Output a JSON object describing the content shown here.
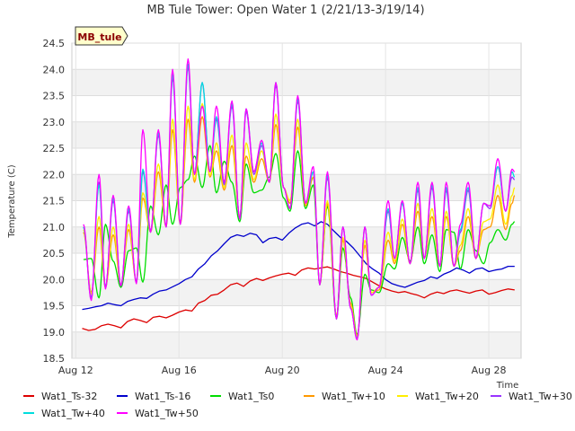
{
  "chart_data": {
    "type": "line",
    "title": "MB Tule Tower: Open Water 1 (2/21/13-3/19/14)",
    "xlabel": "Time",
    "ylabel": "Temperature (C)",
    "badge": "MB_tule",
    "xlim": [
      11.85,
      29.25
    ],
    "ylim": [
      18.5,
      24.5
    ],
    "x_ticks": [
      12,
      16,
      20,
      24,
      28
    ],
    "x_tick_labels": [
      "Aug 12",
      "Aug 16",
      "Aug 20",
      "Aug 24",
      "Aug 28"
    ],
    "y_ticks": [
      18.5,
      19.0,
      19.5,
      20.0,
      20.5,
      21.0,
      21.5,
      22.0,
      22.5,
      23.0,
      23.5,
      24.0,
      24.5
    ],
    "y_tick_labels": [
      "18.5",
      "19.0",
      "19.5",
      "20.0",
      "20.5",
      "21.0",
      "21.5",
      "22.0",
      "22.5",
      "23.0",
      "23.5",
      "24.0",
      "24.5"
    ],
    "banded_background": true,
    "legend_position": "bottom",
    "series": [
      {
        "name": "Wat1_Ts-32",
        "color": "#dd0000",
        "x": [
          12.25,
          12.5,
          12.75,
          13.0,
          13.25,
          13.5,
          13.75,
          14.0,
          14.25,
          14.5,
          14.75,
          15.0,
          15.25,
          15.5,
          15.75,
          16.0,
          16.25,
          16.5,
          16.75,
          17.0,
          17.25,
          17.5,
          17.75,
          18.0,
          18.25,
          18.5,
          18.75,
          19.0,
          19.25,
          19.5,
          19.75,
          20.0,
          20.25,
          20.5,
          20.75,
          21.0,
          21.25,
          21.5,
          21.75,
          22.0,
          22.25,
          22.5,
          22.75,
          23.0,
          23.25,
          23.5,
          23.75,
          24.0,
          24.25,
          24.5,
          24.75,
          25.0,
          25.25,
          25.5,
          25.75,
          26.0,
          26.25,
          26.5,
          26.75,
          27.0,
          27.25,
          27.5,
          27.75,
          28.0,
          28.25,
          28.5,
          28.75,
          29.0
        ],
        "y": [
          19.07,
          19.03,
          19.05,
          19.12,
          19.15,
          19.12,
          19.08,
          19.2,
          19.25,
          19.22,
          19.18,
          19.28,
          19.3,
          19.27,
          19.32,
          19.38,
          19.42,
          19.4,
          19.55,
          19.6,
          19.7,
          19.72,
          19.8,
          19.9,
          19.93,
          19.87,
          19.97,
          20.02,
          19.98,
          20.03,
          20.07,
          20.1,
          20.12,
          20.08,
          20.18,
          20.22,
          20.2,
          20.22,
          20.24,
          20.2,
          20.15,
          20.12,
          20.08,
          20.05,
          20.02,
          19.95,
          19.88,
          19.82,
          19.78,
          19.75,
          19.77,
          19.73,
          19.7,
          19.65,
          19.72,
          19.76,
          19.73,
          19.78,
          19.8,
          19.77,
          19.74,
          19.78,
          19.8,
          19.72,
          19.75,
          19.79,
          19.82,
          19.8
        ]
      },
      {
        "name": "Wat1_Ts-16",
        "color": "#0000cc",
        "x": [
          12.25,
          12.5,
          12.75,
          13.0,
          13.25,
          13.5,
          13.75,
          14.0,
          14.25,
          14.5,
          14.75,
          15.0,
          15.25,
          15.5,
          15.75,
          16.0,
          16.25,
          16.5,
          16.75,
          17.0,
          17.25,
          17.5,
          17.75,
          18.0,
          18.25,
          18.5,
          18.75,
          19.0,
          19.25,
          19.5,
          19.75,
          20.0,
          20.25,
          20.5,
          20.75,
          21.0,
          21.25,
          21.5,
          21.75,
          22.0,
          22.25,
          22.5,
          22.75,
          23.0,
          23.25,
          23.5,
          23.75,
          24.0,
          24.25,
          24.5,
          24.75,
          25.0,
          25.25,
          25.5,
          25.75,
          26.0,
          26.25,
          26.5,
          26.75,
          27.0,
          27.25,
          27.5,
          27.75,
          28.0,
          28.25,
          28.5,
          28.75,
          29.0
        ],
        "y": [
          19.43,
          19.45,
          19.48,
          19.5,
          19.55,
          19.52,
          19.5,
          19.58,
          19.62,
          19.65,
          19.64,
          19.72,
          19.78,
          19.8,
          19.86,
          19.92,
          20.0,
          20.05,
          20.2,
          20.3,
          20.45,
          20.55,
          20.68,
          20.8,
          20.85,
          20.82,
          20.88,
          20.85,
          20.7,
          20.78,
          20.8,
          20.75,
          20.88,
          20.98,
          21.05,
          21.08,
          21.02,
          21.1,
          21.05,
          20.92,
          20.8,
          20.72,
          20.6,
          20.45,
          20.3,
          20.2,
          20.12,
          20.0,
          19.92,
          19.88,
          19.85,
          19.9,
          19.95,
          19.98,
          20.05,
          20.02,
          20.1,
          20.15,
          20.22,
          20.18,
          20.12,
          20.2,
          20.22,
          20.15,
          20.18,
          20.2,
          20.25,
          20.25
        ]
      }
    ],
    "diurnal_series": [
      {
        "name": "Wat1_Ts0",
        "color": "#00dd00",
        "x": [
          12.3,
          12.6,
          12.9,
          13.15,
          13.45,
          13.75,
          14.05,
          14.35,
          14.6,
          14.9,
          15.2,
          15.5,
          15.75,
          16.05,
          16.35,
          16.6,
          16.9,
          17.2,
          17.45,
          17.75,
          18.05,
          18.35,
          18.6,
          18.9,
          19.2,
          19.5,
          19.75,
          20.05,
          20.3,
          20.6,
          20.9,
          21.2,
          21.45,
          21.75,
          22.1,
          22.35,
          22.65,
          22.9,
          23.2,
          23.45,
          23.75,
          24.1,
          24.35,
          24.65,
          24.95,
          25.25,
          25.5,
          25.8,
          26.1,
          26.35,
          26.65,
          26.9,
          27.2,
          27.5,
          27.8,
          28.05,
          28.35,
          28.65,
          28.9,
          29.0
        ],
        "y": [
          20.38,
          20.4,
          19.65,
          21.05,
          20.35,
          19.85,
          20.55,
          20.6,
          19.95,
          21.4,
          20.85,
          21.8,
          21.05,
          21.75,
          21.9,
          22.35,
          21.75,
          22.55,
          21.65,
          22.25,
          21.85,
          21.1,
          22.2,
          21.65,
          21.7,
          21.95,
          22.4,
          21.55,
          21.3,
          22.45,
          21.35,
          21.8,
          19.9,
          21.4,
          19.25,
          20.6,
          19.65,
          18.95,
          20.1,
          19.8,
          19.75,
          20.3,
          20.2,
          20.8,
          20.35,
          21.0,
          20.3,
          20.85,
          20.15,
          20.95,
          20.9,
          20.2,
          20.95,
          20.55,
          20.3,
          20.7,
          20.95,
          20.75,
          21.05,
          21.1
        ]
      },
      {
        "name": "Wat1_Tw+10",
        "color": "#ff9900",
        "x": [
          12.3,
          12.6,
          12.9,
          13.15,
          13.45,
          13.75,
          14.05,
          14.35,
          14.6,
          14.9,
          15.2,
          15.5,
          15.75,
          16.05,
          16.35,
          16.6,
          16.9,
          17.2,
          17.45,
          17.75,
          18.05,
          18.35,
          18.6,
          18.9,
          19.2,
          19.5,
          19.75,
          20.05,
          20.3,
          20.6,
          20.9,
          21.2,
          21.45,
          21.75,
          22.1,
          22.35,
          22.65,
          22.9,
          23.2,
          23.45,
          23.75,
          24.1,
          24.35,
          24.65,
          24.95,
          25.25,
          25.5,
          25.8,
          26.1,
          26.35,
          26.65,
          26.9,
          27.2,
          27.5,
          27.8,
          28.05,
          28.35,
          28.65,
          28.9,
          29.0
        ],
        "y": [
          20.9,
          19.75,
          21.0,
          19.85,
          20.85,
          19.9,
          20.95,
          19.95,
          21.55,
          20.9,
          22.05,
          21.0,
          22.85,
          21.05,
          23.05,
          21.85,
          23.1,
          21.95,
          22.45,
          21.7,
          22.55,
          21.2,
          22.35,
          21.85,
          22.3,
          21.85,
          22.95,
          21.75,
          21.45,
          22.9,
          21.4,
          21.95,
          19.9,
          21.45,
          19.3,
          20.75,
          19.55,
          18.92,
          20.65,
          19.75,
          19.8,
          20.75,
          20.3,
          21.05,
          20.3,
          21.3,
          20.4,
          21.2,
          20.25,
          21.2,
          20.25,
          20.55,
          21.2,
          20.4,
          20.95,
          21.0,
          21.6,
          20.95,
          21.45,
          21.6
        ]
      },
      {
        "name": "Wat1_Tw+20",
        "color": "#ffee00",
        "x": [
          12.3,
          12.6,
          12.9,
          13.15,
          13.45,
          13.75,
          14.05,
          14.35,
          14.6,
          14.9,
          15.2,
          15.5,
          15.75,
          16.05,
          16.35,
          16.6,
          16.9,
          17.2,
          17.45,
          17.75,
          18.05,
          18.35,
          18.6,
          18.9,
          19.2,
          19.5,
          19.75,
          20.05,
          20.3,
          20.6,
          20.9,
          21.2,
          21.45,
          21.75,
          22.1,
          22.35,
          22.65,
          22.9,
          23.2,
          23.45,
          23.75,
          24.1,
          24.35,
          24.65,
          24.95,
          25.25,
          25.5,
          25.8,
          26.1,
          26.35,
          26.65,
          26.9,
          27.2,
          27.5,
          27.8,
          28.05,
          28.35,
          28.65,
          28.9,
          29.0
        ],
        "y": [
          20.95,
          19.72,
          21.2,
          19.85,
          21.0,
          19.9,
          21.05,
          19.95,
          21.65,
          20.92,
          22.2,
          21.0,
          23.05,
          21.05,
          23.3,
          21.9,
          23.35,
          21.98,
          22.6,
          21.75,
          22.75,
          21.2,
          22.6,
          21.9,
          22.45,
          21.85,
          23.15,
          21.75,
          21.5,
          23.05,
          21.45,
          22.05,
          19.9,
          21.5,
          19.3,
          20.8,
          19.5,
          18.9,
          20.75,
          19.75,
          19.85,
          20.9,
          20.35,
          21.15,
          20.3,
          21.45,
          20.4,
          21.35,
          20.25,
          21.3,
          20.25,
          20.65,
          21.35,
          20.4,
          21.1,
          21.15,
          21.8,
          21.05,
          21.6,
          21.75
        ]
      },
      {
        "name": "Wat1_Tw+30",
        "color": "#9933ff",
        "x": [
          12.3,
          12.6,
          12.9,
          13.15,
          13.45,
          13.75,
          14.05,
          14.35,
          14.6,
          14.9,
          15.2,
          15.5,
          15.75,
          16.05,
          16.35,
          16.6,
          16.9,
          17.2,
          17.45,
          17.75,
          18.05,
          18.35,
          18.6,
          18.9,
          19.2,
          19.5,
          19.75,
          20.05,
          20.3,
          20.6,
          20.9,
          21.2,
          21.45,
          21.75,
          22.1,
          22.35,
          22.65,
          22.9,
          23.2,
          23.45,
          23.75,
          24.1,
          24.35,
          24.65,
          24.95,
          25.25,
          25.5,
          25.8,
          26.1,
          26.35,
          26.65,
          26.9,
          27.2,
          27.5,
          27.8,
          28.05,
          28.35,
          28.65,
          28.9,
          29.0
        ],
        "y": [
          21.0,
          19.65,
          21.85,
          19.85,
          21.5,
          19.88,
          21.3,
          19.95,
          22.05,
          20.92,
          22.75,
          21.0,
          23.85,
          21.05,
          24.05,
          22.0,
          23.75,
          22.05,
          23.05,
          21.8,
          23.3,
          21.15,
          23.2,
          22.0,
          22.55,
          21.85,
          23.7,
          21.75,
          21.35,
          23.4,
          21.45,
          22.05,
          19.9,
          21.95,
          19.25,
          21.0,
          19.45,
          18.87,
          21.0,
          19.7,
          19.85,
          21.3,
          20.4,
          21.45,
          20.3,
          21.7,
          20.4,
          21.75,
          20.25,
          21.7,
          20.25,
          20.9,
          21.7,
          20.4,
          21.45,
          21.35,
          22.15,
          21.3,
          21.95,
          21.9
        ]
      },
      {
        "name": "Wat1_Tw+40",
        "color": "#00dddd",
        "x": [
          12.3,
          12.6,
          12.9,
          13.15,
          13.45,
          13.75,
          14.05,
          14.35,
          14.6,
          14.9,
          15.2,
          15.5,
          15.75,
          16.05,
          16.35,
          16.6,
          16.9,
          17.2,
          17.45,
          17.75,
          18.05,
          18.35,
          18.6,
          18.9,
          19.2,
          19.5,
          19.75,
          20.05,
          20.3,
          20.6,
          20.9,
          21.2,
          21.45,
          21.75,
          22.1,
          22.35,
          22.65,
          22.9,
          23.2,
          23.45,
          23.75,
          24.1,
          24.35,
          24.65,
          24.95,
          25.25,
          25.5,
          25.8,
          26.1,
          26.35,
          26.65,
          26.9,
          27.2,
          27.5,
          27.8,
          28.05,
          28.35,
          28.65,
          28.9,
          29.0
        ],
        "y": [
          21.0,
          19.62,
          21.8,
          19.83,
          21.55,
          19.88,
          21.35,
          19.93,
          22.1,
          20.9,
          22.8,
          21.0,
          23.9,
          21.05,
          24.1,
          22.0,
          23.75,
          22.05,
          23.1,
          21.85,
          23.35,
          21.15,
          23.25,
          22.05,
          22.6,
          21.85,
          23.75,
          21.75,
          21.35,
          23.45,
          21.45,
          22.05,
          19.9,
          22.0,
          19.25,
          21.0,
          19.45,
          18.86,
          21.0,
          19.7,
          19.85,
          21.35,
          20.4,
          21.45,
          20.3,
          21.75,
          20.4,
          21.8,
          20.25,
          21.75,
          20.25,
          20.95,
          21.75,
          20.4,
          21.45,
          21.4,
          22.15,
          21.3,
          22.05,
          21.95
        ]
      },
      {
        "name": "Wat1_Tw+50",
        "color": "#ff00ff",
        "x": [
          12.3,
          12.6,
          12.9,
          13.15,
          13.45,
          13.75,
          14.05,
          14.35,
          14.6,
          14.9,
          15.2,
          15.5,
          15.75,
          16.05,
          16.35,
          16.6,
          16.9,
          17.2,
          17.45,
          17.75,
          18.05,
          18.35,
          18.6,
          18.9,
          19.2,
          19.5,
          19.75,
          20.05,
          20.3,
          20.6,
          20.9,
          21.2,
          21.45,
          21.75,
          22.1,
          22.35,
          22.65,
          22.9,
          23.2,
          23.45,
          23.75,
          24.1,
          24.35,
          24.65,
          24.95,
          25.25,
          25.5,
          25.8,
          26.1,
          26.35,
          26.65,
          26.9,
          27.2,
          27.5,
          27.8,
          28.05,
          28.35,
          28.65,
          28.9,
          29.0
        ],
        "y": [
          21.05,
          19.6,
          22.0,
          19.82,
          21.6,
          19.88,
          21.4,
          19.92,
          22.85,
          20.9,
          22.85,
          21.0,
          24.0,
          21.05,
          24.2,
          22.0,
          23.3,
          22.05,
          23.3,
          21.85,
          23.4,
          21.15,
          23.25,
          22.05,
          22.65,
          21.85,
          23.75,
          21.75,
          21.35,
          23.5,
          21.45,
          22.15,
          19.9,
          22.05,
          19.25,
          21.0,
          19.45,
          18.85,
          21.0,
          19.7,
          19.85,
          21.5,
          20.4,
          21.5,
          20.3,
          21.85,
          20.4,
          21.85,
          20.25,
          21.85,
          20.25,
          21.05,
          21.85,
          20.4,
          21.45,
          21.4,
          22.3,
          21.3,
          22.1,
          22.05
        ]
      }
    ]
  }
}
